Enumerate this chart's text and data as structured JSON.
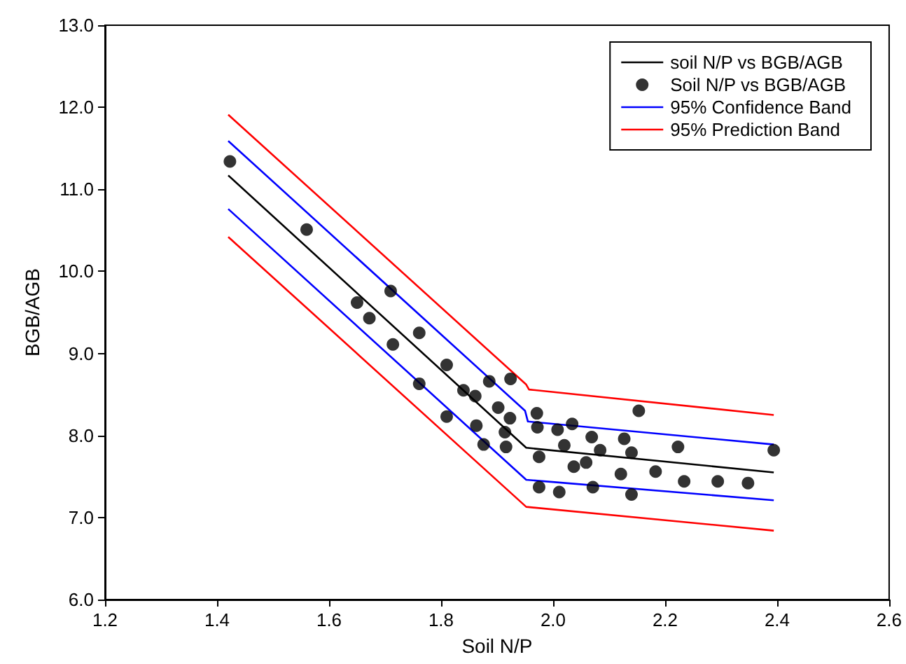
{
  "chart_data": {
    "type": "scatter",
    "xlabel": "Soil N/P",
    "ylabel": "BGB/AGB",
    "xlim": [
      1.2,
      2.6
    ],
    "xticks": [
      1.2,
      1.4,
      1.6,
      1.8,
      {
        "value": 2,
        "label": "2.0"
      },
      2.2,
      2.4,
      2.6
    ],
    "ylim": [
      6,
      13
    ],
    "yticks": [
      {
        "value": 6,
        "label": "6.0"
      },
      {
        "value": 7,
        "label": "7.0"
      },
      {
        "value": 8,
        "label": "8.0"
      },
      {
        "value": 9,
        "label": "9.0"
      },
      {
        "value": 10,
        "label": "10.0"
      },
      {
        "value": 11,
        "label": "11.0"
      },
      {
        "value": 12,
        "label": "12.0"
      },
      {
        "value": 13,
        "label": "13.0"
      }
    ],
    "grid": false,
    "legend": "top right",
    "series": [
      {
        "name": "soil N/P vs BGB/AGB",
        "type": "line",
        "color": "#000000",
        "marker": "none",
        "x": [
          1.42,
          1.952,
          2.394
        ],
        "values": [
          11.17,
          7.85,
          7.55
        ]
      },
      {
        "name": "Soil N/P vs BGB/AGB",
        "color": "#000000",
        "marker": "circle",
        "x": [
          1.423,
          1.56,
          1.65,
          1.672,
          1.71,
          1.714,
          1.761,
          1.761,
          1.81,
          1.81,
          1.84,
          1.861,
          1.863,
          1.876,
          1.886,
          1.902,
          1.914,
          1.916,
          1.923,
          1.924,
          1.971,
          1.972,
          1.975,
          1.975,
          2.008,
          2.011,
          2.02,
          2.034,
          2.037,
          2.059,
          2.069,
          2.071,
          2.084,
          2.121,
          2.127,
          2.14,
          2.14,
          2.153,
          2.183,
          2.223,
          2.234,
          2.294,
          2.348,
          2.394
        ],
        "values": [
          11.34,
          10.51,
          9.62,
          9.43,
          9.76,
          9.11,
          9.25,
          8.63,
          8.86,
          8.23,
          8.55,
          8.48,
          8.12,
          7.89,
          8.66,
          8.34,
          8.04,
          7.86,
          8.21,
          8.69,
          8.27,
          8.1,
          7.74,
          7.37,
          8.07,
          7.31,
          7.88,
          8.14,
          7.62,
          7.67,
          7.98,
          7.37,
          7.82,
          7.53,
          7.96,
          7.79,
          7.28,
          8.3,
          7.56,
          7.86,
          7.44,
          7.44,
          7.42,
          7.82
        ]
      },
      {
        "name": "95% Confidence Band",
        "type": "line",
        "color": "#0000ff",
        "marker": "none",
        "x": [
          1.42,
          1.95,
          1.955,
          2.394
        ],
        "values": [
          11.59,
          8.3,
          8.17,
          7.89
        ]
      },
      {
        "type": "line",
        "color": "#0000ff",
        "marker": "none",
        "x": [
          1.42,
          1.952,
          2.394
        ],
        "values": [
          10.76,
          7.46,
          7.21
        ]
      },
      {
        "name": "95% Prediction Band",
        "type": "line",
        "color": "#ff0000",
        "marker": "none",
        "x": [
          1.42,
          1.952,
          1.957,
          2.394
        ],
        "values": [
          11.91,
          8.62,
          8.56,
          8.25
        ]
      },
      {
        "type": "line",
        "color": "#ff0000",
        "marker": "none",
        "x": [
          1.42,
          1.952,
          2.394
        ],
        "values": [
          10.42,
          7.13,
          6.84
        ]
      }
    ]
  }
}
